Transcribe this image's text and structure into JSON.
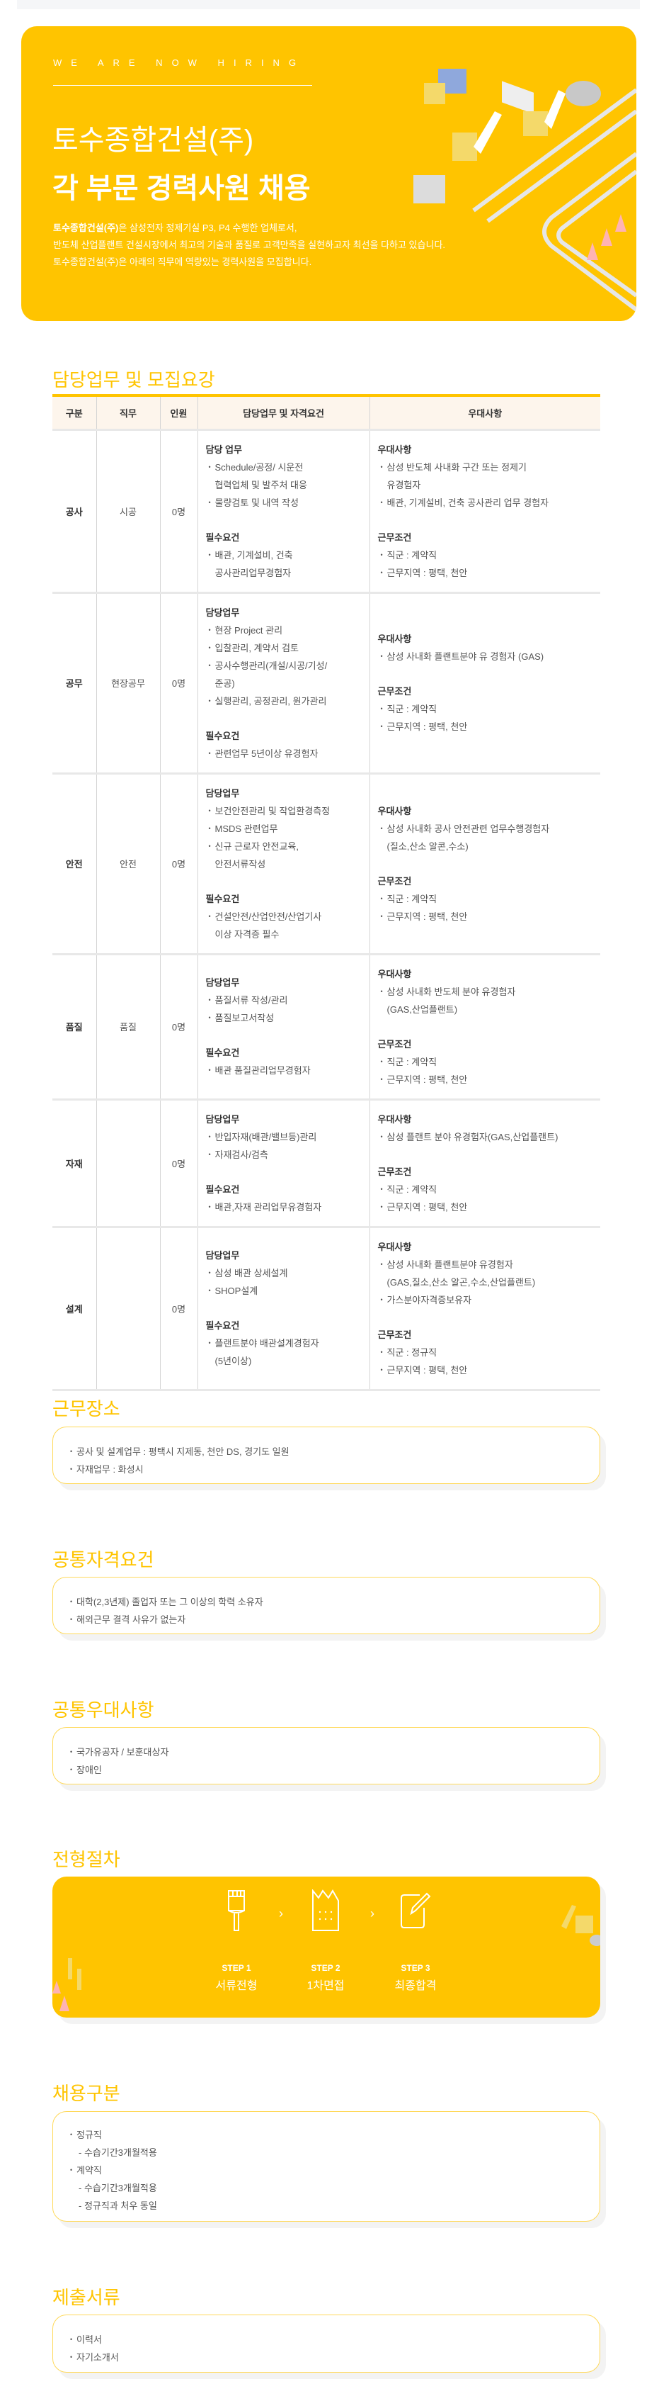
{
  "colors": {
    "accent": "#ffc400",
    "header_bg": "#fdf5ec",
    "box_border": "#ffd95a"
  },
  "banner": {
    "eyebrow": "WE ARE NOW HIRING",
    "company": "토수종합건설(주)",
    "headline": "각 부문 경력사원 채용",
    "desc_bold": "토수종합건설(주)",
    "desc_line1": "은 삼성전자 정제기실 P3, P4 수행한 업체로서,",
    "desc_line2": "반도체 산업플랜트 건설시장에서 최고의 기술과 품질로 고객만족을 실현하고자 최선을 다하고 있습니다.",
    "desc_line3": "토수종합건설(주)은 아래의 직무에 역량있는 경력사원을 모집합니다."
  },
  "duties": {
    "title": "담당업무 및 모집요강",
    "columns": [
      "구분",
      "직무",
      "인원",
      "담당업무 및 자격요건",
      "우대사항"
    ],
    "rows": [
      {
        "cat": "공사",
        "job": "시공",
        "count": "0명",
        "duties": [
          {
            "title": "담당 업무",
            "items": [
              "Schedule/공정/ 시운전\n협력업체 및 발주처 대응",
              "물량검토 및 내역 작성"
            ]
          },
          {
            "title": "필수요건",
            "items": [
              "배관, 기계설비, 건축\n공사관리업무경험자"
            ]
          }
        ],
        "prefs": [
          {
            "title": "우대사항",
            "items": [
              "삼성 반도체 사내화 구간 또는 정제기\n유경험자",
              "배관, 기계설비, 건축 공사관리 업무 경험자"
            ]
          },
          {
            "title": "근무조건",
            "items": [
              "직군 : 계약직",
              "근무지역 : 평택, 천안"
            ]
          }
        ]
      },
      {
        "cat": "공무",
        "job": "현장공무",
        "count": "0명",
        "duties": [
          {
            "title": "담당업무",
            "items": [
              "현장 Project 관리",
              "입찰관리, 계약서 검토",
              "공사수행관리(개설/시공/기성/\n준공)",
              "실행관리, 공정관리, 원가관리"
            ]
          },
          {
            "title": "필수요건",
            "items": [
              "관련업무 5년이상 유경험자"
            ]
          }
        ],
        "prefs": [
          {
            "title": "우대사항",
            "items": [
              "삼성 사내화 플랜트분야 유 경험자 (GAS)"
            ]
          },
          {
            "title": "근무조건",
            "items": [
              "직군 : 계약직",
              "근무지역 : 평택, 천안"
            ]
          }
        ]
      },
      {
        "cat": "안전",
        "job": "안전",
        "count": "0명",
        "duties": [
          {
            "title": "담당업무",
            "items": [
              "보건안전관리 및 작업환경측정",
              "MSDS 관련업무",
              "신규 근로자 안전교육,\n안전서류작성"
            ]
          },
          {
            "title": "필수요건",
            "items": [
              "건설안전/산업안전/산업기사\n이상 자격증 필수"
            ]
          }
        ],
        "prefs": [
          {
            "title": "우대사항",
            "items": [
              "삼성 사내화 공사 안전관련 업무수행경험자\n(질소,산소 알콘,수소)"
            ]
          },
          {
            "title": "근무조건",
            "items": [
              "직군 : 계약직",
              "근무지역 : 평택, 천안"
            ]
          }
        ]
      },
      {
        "cat": "품질",
        "job": "품질",
        "count": "0명",
        "duties": [
          {
            "title": "담당업무",
            "items": [
              "품질서류 작성/관리",
              "품질보고서작성"
            ]
          },
          {
            "title": "필수요건",
            "items": [
              "배관 품질관리업무경험자"
            ]
          }
        ],
        "prefs": [
          {
            "title": "우대사항",
            "items": [
              "삼성 사내화 반도체 분야 유경험자\n(GAS,산업플랜트)"
            ]
          },
          {
            "title": "근무조건",
            "items": [
              "직군 : 계약직",
              "근무지역 : 평택, 천안"
            ]
          }
        ]
      },
      {
        "cat": "자재",
        "job": "",
        "count": "0명",
        "duties": [
          {
            "title": "담당업무",
            "items": [
              "반입자재(배관/밸브등)관리",
              "자재검사/검측"
            ]
          },
          {
            "title": "필수요건",
            "items": [
              "배관,자재 관리업무유경험자"
            ]
          }
        ],
        "prefs": [
          {
            "title": "우대사항",
            "items": [
              "삼성 플랜트 분야 유경험자(GAS,산업플랜트)"
            ]
          },
          {
            "title": "근무조건",
            "items": [
              "직군 : 계약직",
              "근무지역 : 평택, 천안"
            ]
          }
        ]
      },
      {
        "cat": "설계",
        "job": "",
        "count": "0명",
        "duties": [
          {
            "title": "담당업무",
            "items": [
              "삼성 배관 상세설계",
              "SHOP설계"
            ]
          },
          {
            "title": "필수요건",
            "items": [
              "플랜트분야 배관설계경험자\n(5년이상)"
            ]
          }
        ],
        "prefs": [
          {
            "title": "우대사항",
            "items": [
              "삼성 사내화 플랜트분야 유경험자\n(GAS,질소,산소 알곤,수소,산업플랜트)",
              "가스분야자격증보유자"
            ]
          },
          {
            "title": "근무조건",
            "items": [
              "직군 : 정규직",
              "근무지역 : 평택, 천안"
            ]
          }
        ]
      }
    ]
  },
  "workplace": {
    "title": "근무장소",
    "items": [
      "공사 및 설계업무 : 평택시 지제동, 천안 DS, 경기도 일원",
      "자재업무 : 화성시"
    ]
  },
  "qualification": {
    "title": "공통자격요건",
    "items": [
      "대학(2,3년제) 졸업자 또는 그 이상의 학력 소유자",
      "해외근무 결격 사유가 없는자"
    ]
  },
  "preference": {
    "title": "공통우대사항",
    "items": [
      "국가유공자 / 보훈대상자",
      "장애인"
    ]
  },
  "process": {
    "title": "전형절차",
    "steps": [
      {
        "label": "STEP 1",
        "name": "서류전형",
        "icon": "paint-brush-icon"
      },
      {
        "label": "STEP 2",
        "name": "1차면접",
        "icon": "factory-icon"
      },
      {
        "label": "STEP 3",
        "name": "최종합격",
        "icon": "edit-document-icon"
      }
    ]
  },
  "employment": {
    "title": "채용구분",
    "lines": [
      {
        "type": "bullet",
        "text": "정규직"
      },
      {
        "type": "dash",
        "text": "- 수습기간3개월적용"
      },
      {
        "type": "bullet",
        "text": "계약직"
      },
      {
        "type": "dash",
        "text": "- 수습기간3개월적용"
      },
      {
        "type": "dash",
        "text": "- 정규직과 처우 동일"
      }
    ]
  },
  "documents": {
    "title": "제출서류",
    "items": [
      "이력서",
      "자기소개서"
    ]
  }
}
